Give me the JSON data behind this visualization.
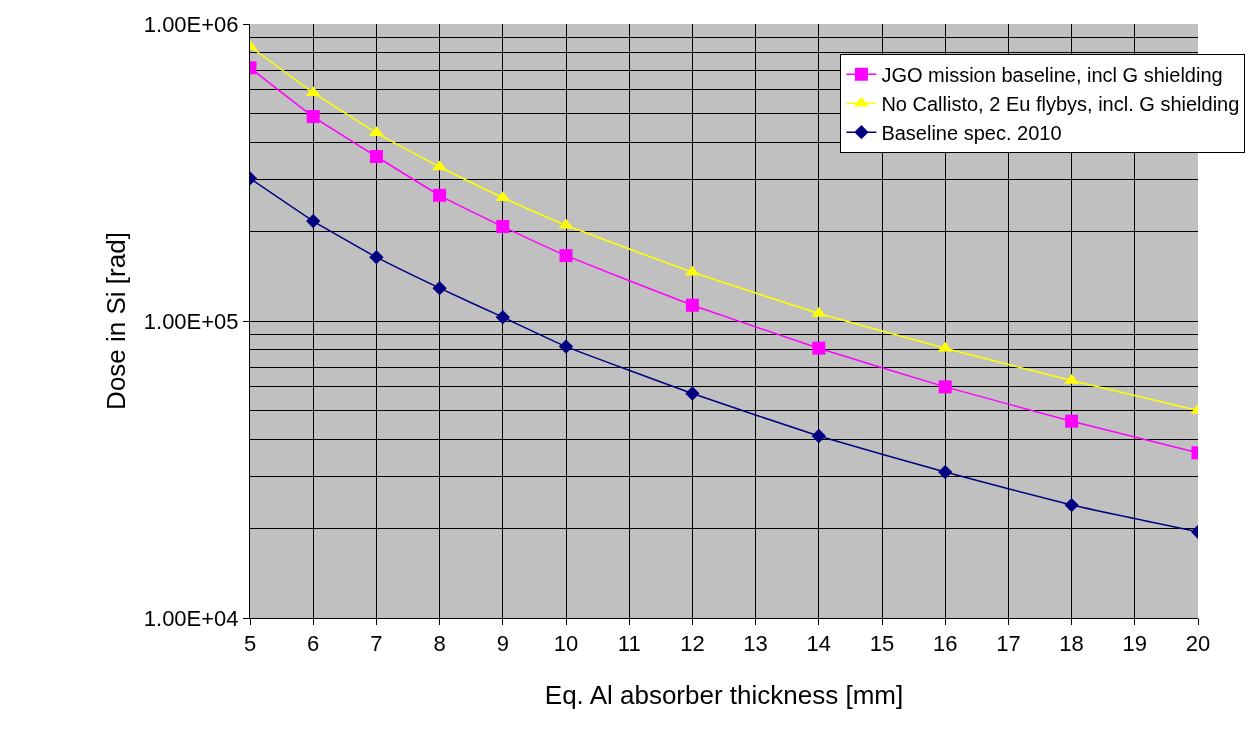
{
  "chart_data": {
    "type": "line",
    "xlabel": "Eq. Al absorber thickness [mm]",
    "ylabel": "Dose in Si [rad]",
    "x": [
      5,
      6,
      7,
      8,
      9,
      10,
      12,
      14,
      16,
      18,
      20
    ],
    "series": [
      {
        "name": "JGO mission baseline, incl G shielding",
        "color": "#ff00ff",
        "marker": "square",
        "values": [
          712000,
          488000,
          358000,
          265000,
          208000,
          166000,
          113000,
          81000,
          60000,
          46000,
          36000
        ]
      },
      {
        "name": "No Callisto, 2 Eu flybys, incl. G shielding",
        "color": "#ffff00",
        "marker": "triangle",
        "values": [
          840000,
          587000,
          430000,
          330000,
          260000,
          210000,
          146000,
          106000,
          81000,
          63000,
          50000
        ]
      },
      {
        "name": "Baseline spec. 2010",
        "color": "#000080",
        "marker": "diamond",
        "values": [
          302000,
          217000,
          164000,
          129000,
          103000,
          82000,
          57000,
          41000,
          31000,
          24000,
          19500
        ]
      }
    ],
    "log": "y",
    "xlim": [
      5,
      20
    ],
    "xticks": [
      5,
      6,
      7,
      8,
      9,
      10,
      11,
      12,
      13,
      14,
      15,
      16,
      17,
      18,
      19,
      20
    ],
    "ylim": [
      10000,
      1000000
    ],
    "yticks": [
      {
        "value": 10000,
        "label": "1.00E+04"
      },
      {
        "value": 100000,
        "label": "1.00E+05"
      },
      {
        "value": 1000000,
        "label": "1.00E+06"
      }
    ],
    "grid": true,
    "legend": "top right"
  }
}
